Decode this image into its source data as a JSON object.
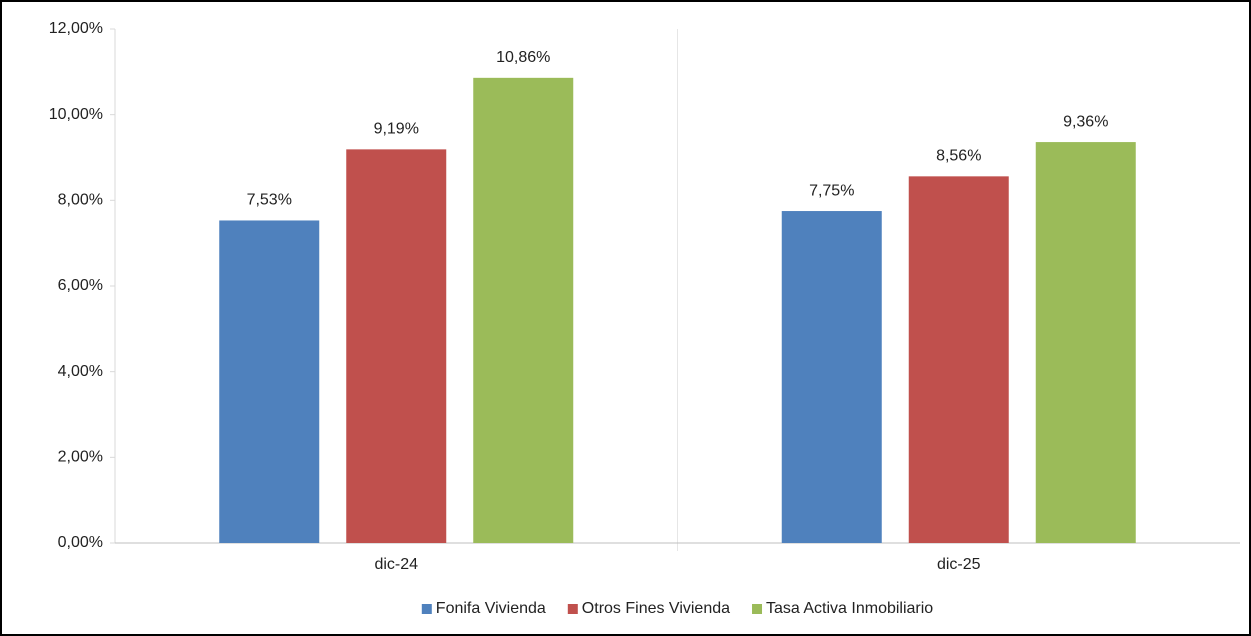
{
  "chart_data": {
    "type": "bar",
    "categories": [
      "dic-24",
      "dic-25"
    ],
    "series": [
      {
        "name": "Fonifa Vivienda",
        "color": "#4f81bd",
        "values": [
          7.53,
          7.75
        ],
        "value_labels": [
          "7,53%",
          "7,75%"
        ]
      },
      {
        "name": "Otros Fines Vivienda",
        "color": "#c0504d",
        "values": [
          9.19,
          8.56
        ],
        "value_labels": [
          "9,19%",
          "8,56%"
        ]
      },
      {
        "name": "Tasa Activa Inmobiliario",
        "color": "#9bbb59",
        "values": [
          10.86,
          9.36
        ],
        "value_labels": [
          "10,86%",
          "9,36%"
        ]
      }
    ],
    "ylim": [
      0,
      12
    ],
    "yticks": [
      {
        "value": 0,
        "label": "0,00%"
      },
      {
        "value": 2,
        "label": "2,00%"
      },
      {
        "value": 4,
        "label": "4,00%"
      },
      {
        "value": 6,
        "label": "6,00%"
      },
      {
        "value": 8,
        "label": "8,00%"
      },
      {
        "value": 10,
        "label": "10,00%"
      },
      {
        "value": 12,
        "label": "12,00%"
      }
    ],
    "grid": false,
    "legend": "bottom"
  }
}
